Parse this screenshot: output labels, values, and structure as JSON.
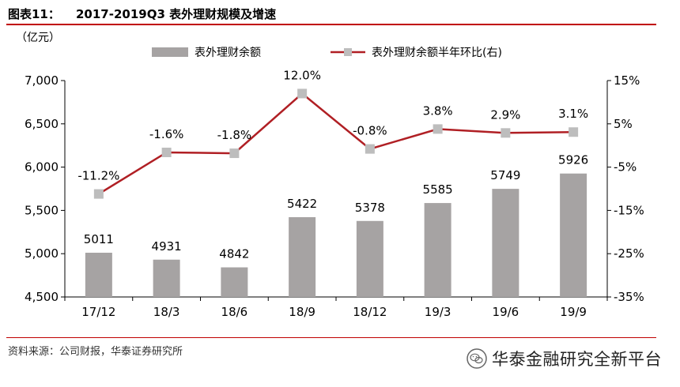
{
  "header": {
    "label": "图表11：",
    "title": "2017-2019Q3 表外理财规模及增速"
  },
  "source": "资料来源：公司财报，华泰证券研究所",
  "watermark": {
    "text": "华泰金融研究全新平台",
    "icon": "wechat-icon"
  },
  "chart_data": {
    "type": "bar+line",
    "categories": [
      "17/12",
      "18/3",
      "18/6",
      "18/9",
      "18/12",
      "19/3",
      "19/6",
      "19/9"
    ],
    "left_unit": "（亿元）",
    "series": [
      {
        "name": "表外理财余额",
        "type": "bar",
        "axis": "left",
        "color": "#a6a3a3",
        "values": [
          5011,
          4931,
          4842,
          5422,
          5378,
          5585,
          5749,
          5926
        ],
        "labels": [
          "5011",
          "4931",
          "4842",
          "5422",
          "5378",
          "5585",
          "5749",
          "5926"
        ]
      },
      {
        "name": "表外理财余额半年环比(右)",
        "type": "line",
        "axis": "right",
        "color": "#b01f24",
        "marker_color": "#bdbdbd",
        "values": [
          -11.2,
          -1.6,
          -1.8,
          12.0,
          -0.8,
          3.8,
          2.9,
          3.1
        ],
        "labels": [
          "-11.2%",
          "-1.6%",
          "-1.8%",
          "12.0%",
          "-0.8%",
          "3.8%",
          "2.9%",
          "3.1%"
        ]
      }
    ],
    "left_axis": {
      "min": 4500,
      "max": 7000,
      "ticks": [
        4500,
        5000,
        5500,
        6000,
        6500,
        7000
      ],
      "tick_labels": [
        "4,500",
        "5,000",
        "5,500",
        "6,000",
        "6,500",
        "7,000"
      ]
    },
    "right_axis": {
      "min": -35,
      "max": 15,
      "ticks": [
        -35,
        -25,
        -15,
        -5,
        5,
        15
      ],
      "tick_labels": [
        "-35%",
        "-25%",
        "-15%",
        "-5%",
        "5%",
        "15%"
      ]
    },
    "legend_position": "top",
    "grid": false
  }
}
